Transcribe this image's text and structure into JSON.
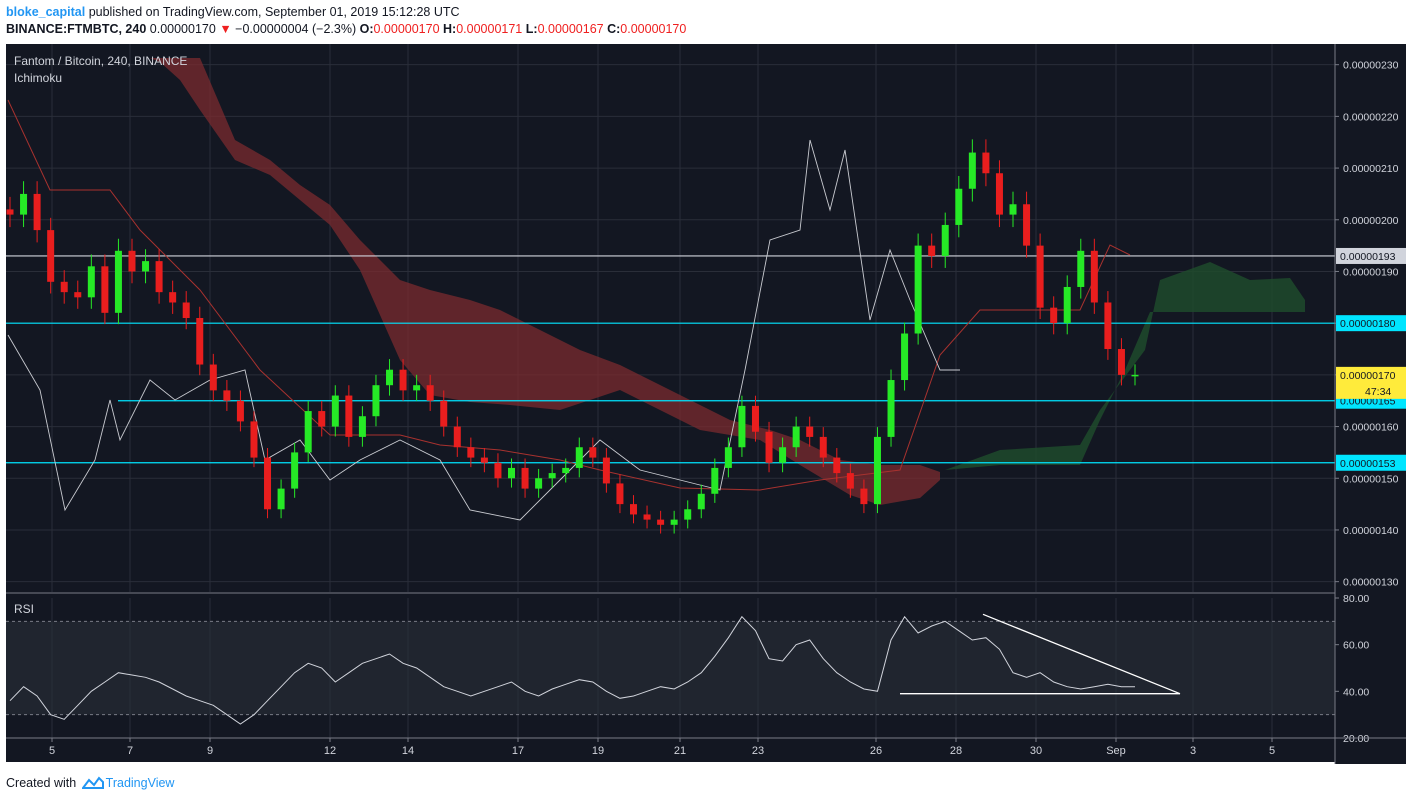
{
  "header": {
    "author": "bloke_capital",
    "published_text": "published on TradingView.com, September 01, 2019 15:12:28 UTC",
    "symbol": "BINANCE:FTMBTC, 240",
    "last": "0.00000170",
    "change": "−0.00000004 (−2.3%)",
    "o_label": "O:",
    "o_value": "0.00000170",
    "h_label": "H:",
    "h_value": "0.00000171",
    "l_label": "L:",
    "l_value": "0.00000167",
    "c_label": "C:",
    "c_value": "0.00000170"
  },
  "chart": {
    "title": "Fantom / Bitcoin, 240, BINANCE",
    "indicator": "Ichimoku",
    "rsi_label": "RSI",
    "countdown": "47:34"
  },
  "footer": {
    "created_with": "Created with",
    "brand": "TradingView"
  },
  "colors": {
    "background": "#131722",
    "grid": "#2a2e39",
    "up": "#26e926",
    "down": "#e91e1e",
    "cloud_bear": "#7b2b2f",
    "cloud_bull": "#1f4a2c",
    "cyan_line": "#00e5ff",
    "white_line": "#d1d4dc",
    "highlight": "#ffeb3b"
  },
  "chart_data": [
    {
      "type": "candlestick",
      "title": "Fantom / Bitcoin, 240, BINANCE",
      "price_axis_ticks": [
        "0.00000230",
        "0.00000220",
        "0.00000210",
        "0.00000200",
        "0.00000190",
        "0.00000180",
        "0.00000170",
        "0.00000160",
        "0.00000150",
        "0.00000140",
        "0.00000130"
      ],
      "ylim": [
        1.28e-06,
        2.34e-06
      ],
      "time_axis_ticks": [
        "5",
        "7",
        "9",
        "12",
        "14",
        "17",
        "19",
        "21",
        "23",
        "26",
        "28",
        "30",
        "Sep",
        "3",
        "5"
      ],
      "horizontal_levels": [
        {
          "price": "0.00000193",
          "color": "white"
        },
        {
          "price": "0.00000180",
          "color": "cyan"
        },
        {
          "price": "0.00000165",
          "color": "cyan"
        },
        {
          "price": "0.00000153",
          "color": "cyan"
        }
      ],
      "last_price_label": "0.00000170",
      "close_series": [
        2.01e-06,
        2.05e-06,
        1.98e-06,
        1.88e-06,
        1.86e-06,
        1.85e-06,
        1.91e-06,
        1.82e-06,
        1.94e-06,
        1.9e-06,
        1.92e-06,
        1.86e-06,
        1.84e-06,
        1.81e-06,
        1.72e-06,
        1.67e-06,
        1.65e-06,
        1.61e-06,
        1.54e-06,
        1.44e-06,
        1.48e-06,
        1.55e-06,
        1.63e-06,
        1.6e-06,
        1.66e-06,
        1.58e-06,
        1.62e-06,
        1.68e-06,
        1.71e-06,
        1.67e-06,
        1.68e-06,
        1.65e-06,
        1.6e-06,
        1.56e-06,
        1.54e-06,
        1.53e-06,
        1.5e-06,
        1.52e-06,
        1.48e-06,
        1.5e-06,
        1.51e-06,
        1.52e-06,
        1.56e-06,
        1.54e-06,
        1.49e-06,
        1.45e-06,
        1.43e-06,
        1.42e-06,
        1.41e-06,
        1.42e-06,
        1.44e-06,
        1.47e-06,
        1.52e-06,
        1.56e-06,
        1.64e-06,
        1.59e-06,
        1.53e-06,
        1.56e-06,
        1.6e-06,
        1.58e-06,
        1.54e-06,
        1.51e-06,
        1.48e-06,
        1.45e-06,
        1.58e-06,
        1.69e-06,
        1.78e-06,
        1.95e-06,
        1.93e-06,
        1.99e-06,
        2.06e-06,
        2.13e-06,
        2.09e-06,
        2.01e-06,
        2.03e-06,
        1.95e-06,
        1.83e-06,
        1.8e-06,
        1.87e-06,
        1.94e-06,
        1.84e-06,
        1.75e-06,
        1.7e-06,
        1.7e-06
      ]
    },
    {
      "type": "line",
      "title": "RSI",
      "yticks": [
        "80.00",
        "60.00",
        "40.00",
        "20.00"
      ],
      "ylim": [
        20,
        80
      ],
      "band": [
        30,
        70
      ],
      "values": [
        36,
        42,
        38,
        30,
        28,
        34,
        40,
        44,
        48,
        47,
        46,
        44,
        41,
        38,
        36,
        34,
        30,
        26,
        30,
        36,
        42,
        48,
        52,
        50,
        44,
        48,
        52,
        54,
        56,
        52,
        50,
        46,
        42,
        40,
        38,
        40,
        42,
        44,
        40,
        38,
        41,
        43,
        45,
        44,
        40,
        37,
        38,
        40,
        42,
        41,
        44,
        48,
        55,
        63,
        72,
        66,
        54,
        53,
        60,
        62,
        54,
        48,
        44,
        41,
        40,
        62,
        72,
        65,
        68,
        70,
        66,
        62,
        63,
        58,
        48,
        46,
        48,
        44,
        42,
        41,
        42,
        43,
        42,
        42
      ],
      "annotations": [
        {
          "kind": "descending trendline",
          "from_value": 73,
          "to_value": 39
        },
        {
          "kind": "horizontal support",
          "value": 39
        }
      ]
    }
  ]
}
